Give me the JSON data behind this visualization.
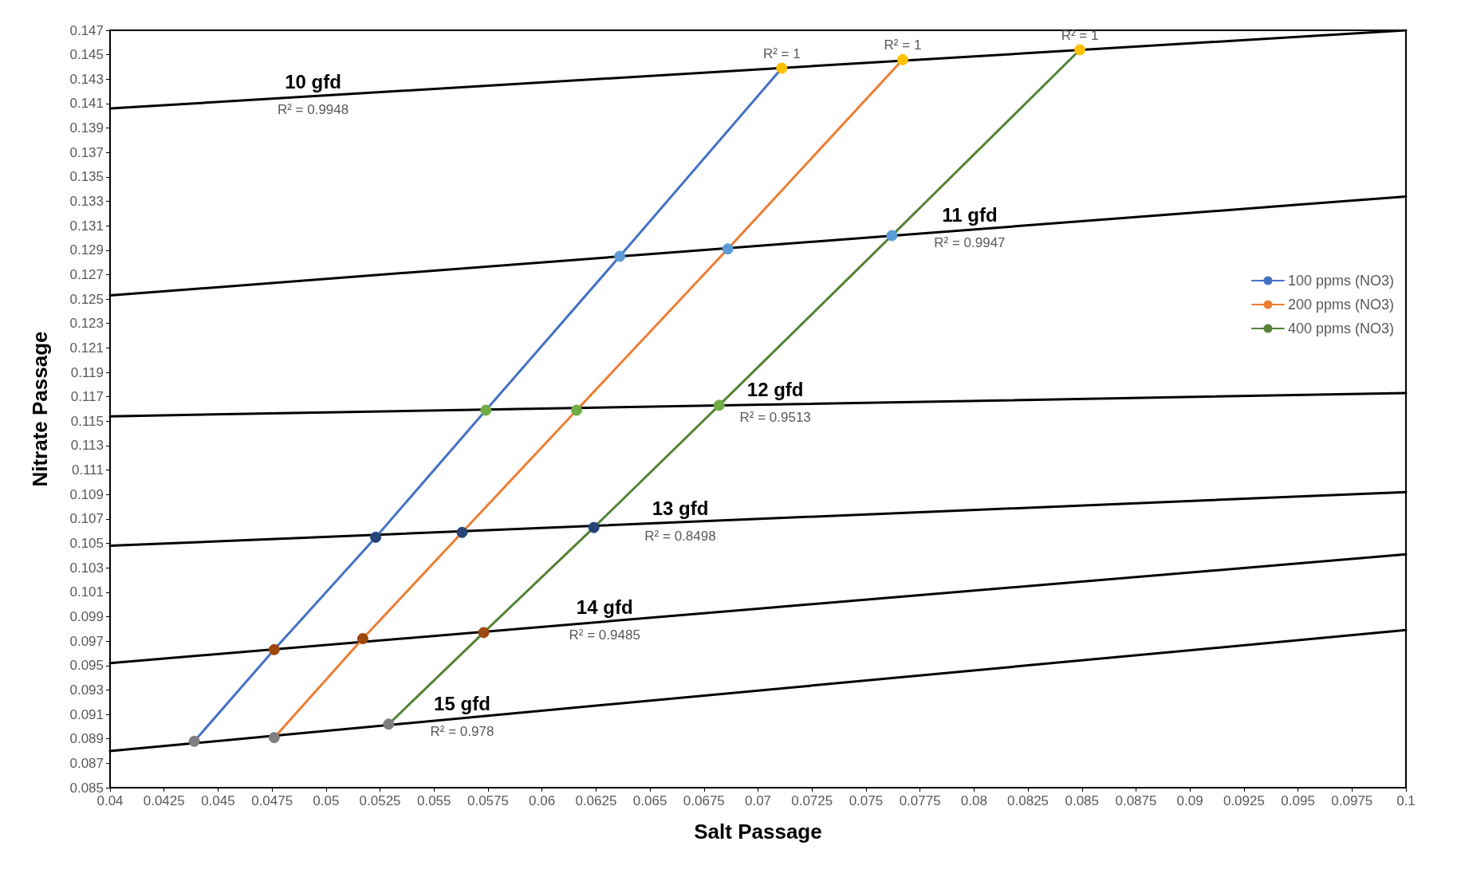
{
  "chart_data": {
    "type": "line",
    "xlabel": "Salt Passage",
    "ylabel": "Nitrate Passage",
    "xlim": [
      0.04,
      0.1
    ],
    "xticks": [
      0.04,
      0.0425,
      0.045,
      0.0475,
      0.05,
      0.0525,
      0.055,
      0.0575,
      0.06,
      0.0625,
      0.065,
      0.0675,
      0.07,
      0.0725,
      0.075,
      0.0775,
      0.08,
      0.0825,
      0.085,
      0.0875,
      0.09,
      0.0925,
      0.095,
      0.0975,
      0.1
    ],
    "ylim": [
      0.085,
      0.147
    ],
    "yticks": [
      0.085,
      0.087,
      0.089,
      0.091,
      0.093,
      0.095,
      0.097,
      0.099,
      0.101,
      0.103,
      0.105,
      0.107,
      0.109,
      0.111,
      0.113,
      0.115,
      0.117,
      0.119,
      0.121,
      0.123,
      0.125,
      0.127,
      0.129,
      0.131,
      0.133,
      0.135,
      0.137,
      0.139,
      0.141,
      0.143,
      0.145,
      0.147
    ],
    "grid": false,
    "legend": "right",
    "marker": "circle",
    "line_style": "solid",
    "series": [
      {
        "name": "100 ppms (NO3)",
        "color": "#4472c4",
        "x": [
          0.0439,
          0.0476,
          0.0523,
          0.0574,
          0.0636,
          0.0711
        ],
        "values": [
          0.0888,
          0.0963,
          0.1055,
          0.1159,
          0.1285,
          0.1439
        ],
        "colors": [
          "#7f7f7f",
          "#9e480e",
          "#264478",
          "#70ad47",
          "#5b9bd5",
          "#ffc000"
        ]
      },
      {
        "name": "200 ppms (NO3)",
        "color": "#ed7d31",
        "x": [
          0.0476,
          0.0517,
          0.0563,
          0.0616,
          0.0686,
          0.0767
        ],
        "values": [
          0.0891,
          0.0972,
          0.1059,
          0.1159,
          0.1291,
          0.1446
        ],
        "colors": [
          "#7f7f7f",
          "#9e480e",
          "#264478",
          "#70ad47",
          "#5b9bd5",
          "#ffc000"
        ]
      },
      {
        "name": "400 ppms (NO3)",
        "color": "#548235",
        "x": [
          0.0529,
          0.0573,
          0.0624,
          0.0682,
          0.0762,
          0.0849
        ],
        "values": [
          0.0902,
          0.0977,
          0.1063,
          0.1163,
          0.1302,
          0.1454
        ],
        "colors": [
          "#7f7f7f",
          "#9e480e",
          "#264478",
          "#70ad47",
          "#5b9bd5",
          "#ffc000"
        ]
      },
      {
        "name": "10 gfd",
        "color": "#000000",
        "marker": "none",
        "x": [
          0.04,
          0.1
        ],
        "values": [
          0.1406,
          0.147
        ]
      },
      {
        "name": "11 gfd",
        "color": "#000000",
        "marker": "none",
        "x": [
          0.04,
          0.1
        ],
        "values": [
          0.1253,
          0.1334
        ]
      },
      {
        "name": "12 gfd",
        "color": "#000000",
        "marker": "none",
        "x": [
          0.04,
          0.1
        ],
        "values": [
          0.1154,
          0.1173
        ]
      },
      {
        "name": "13 gfd",
        "color": "#000000",
        "marker": "none",
        "x": [
          0.04,
          0.1
        ],
        "values": [
          0.1048,
          0.1092
        ]
      },
      {
        "name": "14 gfd",
        "color": "#000000",
        "marker": "none",
        "x": [
          0.04,
          0.1
        ],
        "values": [
          0.0952,
          0.1041
        ]
      },
      {
        "name": "15 gfd",
        "color": "#000000",
        "marker": "none",
        "x": [
          0.04,
          0.1
        ],
        "values": [
          0.088,
          0.0979
        ]
      }
    ],
    "annotations": [
      {
        "text": "R² = 0.9948",
        "x": 0.0494,
        "y": 0.1416
      },
      {
        "text": "R² = 0.9947",
        "x": 0.0798,
        "y": 0.1307
      },
      {
        "text": "R² = 0.9513",
        "x": 0.0708,
        "y": 0.1164
      },
      {
        "text": "R² = 0.8498",
        "x": 0.0664,
        "y": 0.1067
      },
      {
        "text": "R² = 0.9485",
        "x": 0.0629,
        "y": 0.0986
      },
      {
        "text": "R² = 0.978",
        "x": 0.0563,
        "y": 0.0907
      },
      {
        "text": "R² = 1",
        "x": 0.0711,
        "y": 0.1439
      },
      {
        "text": "R² = 1",
        "x": 0.0767,
        "y": 0.1446
      },
      {
        "text": "R² = 1",
        "x": 0.0849,
        "y": 0.1454
      }
    ]
  }
}
